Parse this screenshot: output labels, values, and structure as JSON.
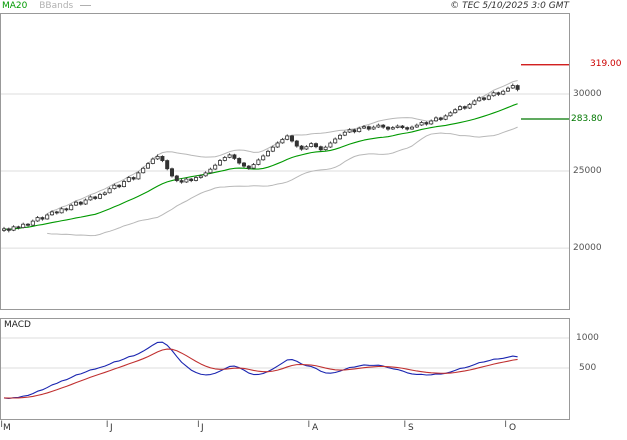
{
  "legend": {
    "ma20": "MA20",
    "bbands": "BBands"
  },
  "copyright": "© TEC 5/10/2025 3:0 GMT",
  "colors": {
    "background": "#ffffff",
    "border": "#999999",
    "grid": "#dddddd",
    "wick": "#333333",
    "candle_up_fill": "#ffffff",
    "candle_down_fill": "#333333",
    "ma20": "#009900",
    "bbands": "#b8b8b8",
    "tick": "#666666"
  },
  "chart_data": [
    {
      "type": "candlestick",
      "title": "",
      "ylim": [
        15980,
        35260
      ],
      "grid_values": [
        30000,
        25000,
        20000
      ],
      "y_ticks": {
        "labels": [
          "30000",
          "25000",
          "20000"
        ],
        "values": [
          30000,
          25000,
          20000
        ]
      },
      "months": {
        "labels": [
          "M",
          "J",
          "J",
          "A",
          "S",
          "O"
        ],
        "start_indices": [
          0,
          22,
          41,
          64,
          84,
          105
        ]
      },
      "levels": [
        {
          "label": "319.00",
          "value": 31900,
          "color": "#cc0000"
        },
        {
          "label": "283.80",
          "value": 28380,
          "color": "#007700"
        }
      ],
      "overlays": [
        {
          "name": "MA20",
          "period": 20,
          "color": "#009900"
        },
        {
          "name": "BBands",
          "period": 20,
          "stddev": 2,
          "color": "#b8b8b8"
        }
      ],
      "ohlc": [
        [
          21150,
          21380,
          21050,
          21250
        ],
        [
          21250,
          21330,
          21020,
          21150
        ],
        [
          21160,
          21480,
          21100,
          21380
        ],
        [
          21380,
          21450,
          21210,
          21320
        ],
        [
          21330,
          21650,
          21280,
          21550
        ],
        [
          21550,
          21620,
          21380,
          21480
        ],
        [
          21490,
          21850,
          21440,
          21750
        ],
        [
          21760,
          22080,
          21700,
          21980
        ],
        [
          21980,
          22050,
          21780,
          21880
        ],
        [
          21890,
          22250,
          21840,
          22150
        ],
        [
          22160,
          22450,
          22100,
          22350
        ],
        [
          22350,
          22420,
          22180,
          22280
        ],
        [
          22290,
          22650,
          22240,
          22550
        ],
        [
          22550,
          22620,
          22380,
          22480
        ],
        [
          22490,
          22880,
          22440,
          22780
        ],
        [
          22790,
          23080,
          22730,
          22980
        ],
        [
          22980,
          23050,
          22760,
          22850
        ],
        [
          22860,
          23220,
          22800,
          23120
        ],
        [
          23130,
          23420,
          23070,
          23320
        ],
        [
          23320,
          23390,
          23130,
          23220
        ],
        [
          23230,
          23580,
          23180,
          23480
        ],
        [
          23480,
          23680,
          23400,
          23580
        ],
        [
          23590,
          23950,
          23540,
          23850
        ],
        [
          23860,
          24180,
          23800,
          24080
        ],
        [
          24080,
          24150,
          23890,
          23980
        ],
        [
          23990,
          24420,
          23940,
          24320
        ],
        [
          24330,
          24680,
          24270,
          24580
        ],
        [
          24580,
          24650,
          24390,
          24480
        ],
        [
          24490,
          24980,
          24440,
          24880
        ],
        [
          24890,
          25280,
          24840,
          25180
        ],
        [
          25190,
          25580,
          25140,
          25480
        ],
        [
          25490,
          25880,
          25440,
          25780
        ],
        [
          25790,
          26080,
          25720,
          25950
        ],
        [
          25950,
          26020,
          25580,
          25680
        ],
        [
          25680,
          25750,
          25050,
          25150
        ],
        [
          25150,
          25220,
          24580,
          24680
        ],
        [
          24680,
          24750,
          24280,
          24380
        ],
        [
          24380,
          24520,
          24180,
          24280
        ],
        [
          24290,
          24580,
          24230,
          24480
        ],
        [
          24480,
          24550,
          24280,
          24380
        ],
        [
          24390,
          24680,
          24330,
          24580
        ],
        [
          24580,
          24780,
          24500,
          24680
        ],
        [
          24690,
          24980,
          24630,
          24880
        ],
        [
          24890,
          25220,
          24830,
          25120
        ],
        [
          25130,
          25480,
          25070,
          25380
        ],
        [
          25390,
          25780,
          25330,
          25680
        ],
        [
          25690,
          25980,
          25630,
          25880
        ],
        [
          25890,
          26150,
          25830,
          26050
        ],
        [
          26050,
          26120,
          25720,
          25820
        ],
        [
          25820,
          25890,
          25420,
          25520
        ],
        [
          25520,
          25590,
          25220,
          25320
        ],
        [
          25320,
          25390,
          25080,
          25180
        ],
        [
          25190,
          25520,
          25130,
          25420
        ],
        [
          25430,
          25820,
          25370,
          25720
        ],
        [
          25730,
          26080,
          25670,
          25980
        ],
        [
          25990,
          26380,
          25930,
          26280
        ],
        [
          26290,
          26650,
          26230,
          26550
        ],
        [
          26560,
          26920,
          26500,
          26820
        ],
        [
          26830,
          27150,
          26770,
          27050
        ],
        [
          27060,
          27380,
          27000,
          27280
        ],
        [
          27280,
          27350,
          26850,
          26950
        ],
        [
          26950,
          27020,
          26520,
          26620
        ],
        [
          26620,
          26690,
          26320,
          26420
        ],
        [
          26430,
          26680,
          26370,
          26580
        ],
        [
          26590,
          26880,
          26530,
          26780
        ],
        [
          26780,
          26850,
          26480,
          26580
        ],
        [
          26580,
          26650,
          26280,
          26380
        ],
        [
          26390,
          26650,
          26330,
          26550
        ],
        [
          26560,
          26920,
          26500,
          26820
        ],
        [
          26830,
          27180,
          26770,
          27080
        ],
        [
          27090,
          27420,
          27030,
          27320
        ],
        [
          27330,
          27620,
          27270,
          27520
        ],
        [
          27530,
          27780,
          27470,
          27680
        ],
        [
          27680,
          27750,
          27450,
          27550
        ],
        [
          27560,
          27880,
          27500,
          27780
        ],
        [
          27790,
          27980,
          27730,
          27880
        ],
        [
          27880,
          27950,
          27620,
          27720
        ],
        [
          27730,
          27950,
          27670,
          27850
        ],
        [
          27860,
          28080,
          27800,
          27980
        ],
        [
          27980,
          28050,
          27750,
          27850
        ],
        [
          27850,
          27920,
          27620,
          27720
        ],
        [
          27730,
          27920,
          27670,
          27820
        ],
        [
          27830,
          28020,
          27770,
          27920
        ],
        [
          27920,
          27990,
          27720,
          27820
        ],
        [
          27820,
          27890,
          27620,
          27720
        ],
        [
          27730,
          27950,
          27670,
          27850
        ],
        [
          27860,
          28080,
          27800,
          27980
        ],
        [
          27990,
          28250,
          27930,
          28150
        ],
        [
          28150,
          28220,
          27950,
          28050
        ],
        [
          28060,
          28350,
          28000,
          28250
        ],
        [
          28260,
          28550,
          28200,
          28450
        ],
        [
          28450,
          28520,
          28250,
          28350
        ],
        [
          28360,
          28680,
          28300,
          28580
        ],
        [
          28590,
          28880,
          28530,
          28780
        ],
        [
          28790,
          29080,
          28730,
          28980
        ],
        [
          28990,
          29280,
          28930,
          29180
        ],
        [
          29180,
          29250,
          28980,
          29080
        ],
        [
          29090,
          29420,
          29030,
          29320
        ],
        [
          29330,
          29650,
          29270,
          29550
        ],
        [
          29560,
          29850,
          29500,
          29750
        ],
        [
          29750,
          29820,
          29550,
          29650
        ],
        [
          29660,
          29980,
          29600,
          29880
        ],
        [
          29890,
          30180,
          29830,
          30080
        ],
        [
          30080,
          30150,
          29880,
          29980
        ],
        [
          29990,
          30280,
          29930,
          30180
        ],
        [
          30190,
          30480,
          30130,
          30380
        ],
        [
          30390,
          30680,
          30330,
          30550
        ],
        [
          30550,
          30620,
          30180,
          30300
        ]
      ]
    },
    {
      "type": "line",
      "title": "MACD",
      "params": {
        "fast": 12,
        "slow": 26,
        "signal": 9
      },
      "series_colors": {
        "macd": "#1a25b0",
        "signal": "#c03030"
      },
      "ylim": [
        -367,
        1333
      ],
      "grid_values": [
        1000,
        500
      ],
      "y_ticks": {
        "labels": [
          "1000",
          "500"
        ],
        "values": [
          1000,
          500
        ]
      }
    }
  ]
}
